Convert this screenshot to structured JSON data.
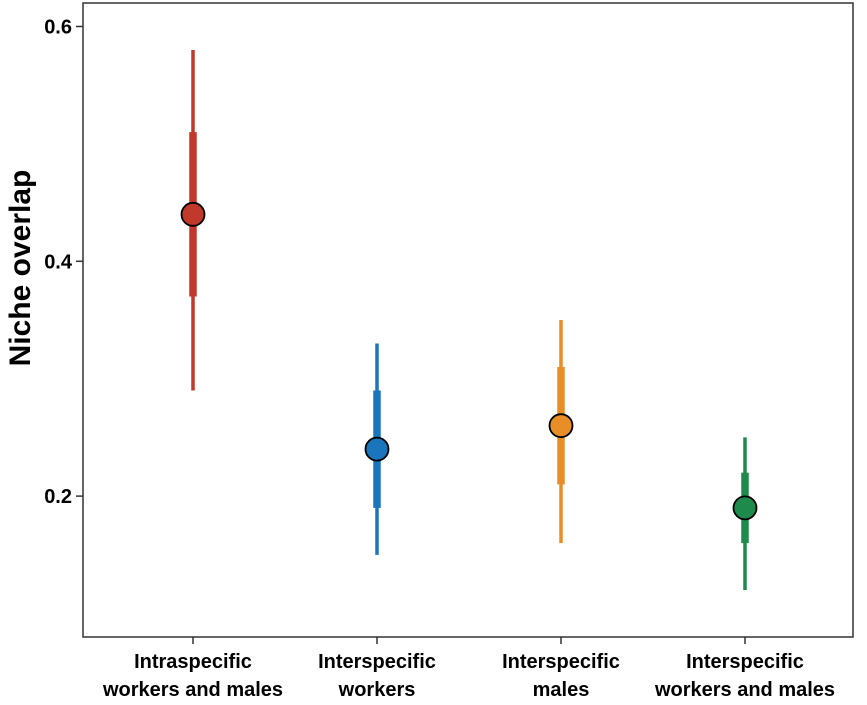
{
  "chart_data": {
    "type": "scatter",
    "subtype": "point-interval",
    "title": "",
    "xlabel": "",
    "ylabel": "Niche overlap",
    "ylim": [
      0.08,
      0.62
    ],
    "yticks": [
      0.2,
      0.4,
      0.6
    ],
    "ytick_labels": [
      "0.2",
      "0.4",
      "0.6"
    ],
    "grid": false,
    "legend": "none",
    "categories": [
      [
        "Intraspecific",
        "workers and males"
      ],
      [
        "Interspecific",
        "workers"
      ],
      [
        "Interspecific",
        "males"
      ],
      [
        "Interspecific",
        "workers and males"
      ]
    ],
    "points": [
      {
        "y": 0.44,
        "inner": [
          0.37,
          0.51
        ],
        "outer": [
          0.29,
          0.58
        ],
        "color": "#c0392b"
      },
      {
        "y": 0.24,
        "inner": [
          0.19,
          0.29
        ],
        "outer": [
          0.15,
          0.33
        ],
        "color": "#1a75bc"
      },
      {
        "y": 0.26,
        "inner": [
          0.21,
          0.31
        ],
        "outer": [
          0.16,
          0.35
        ],
        "color": "#e88e27"
      },
      {
        "y": 0.19,
        "inner": [
          0.16,
          0.22
        ],
        "outer": [
          0.12,
          0.25
        ],
        "color": "#1e8a4c"
      }
    ]
  }
}
